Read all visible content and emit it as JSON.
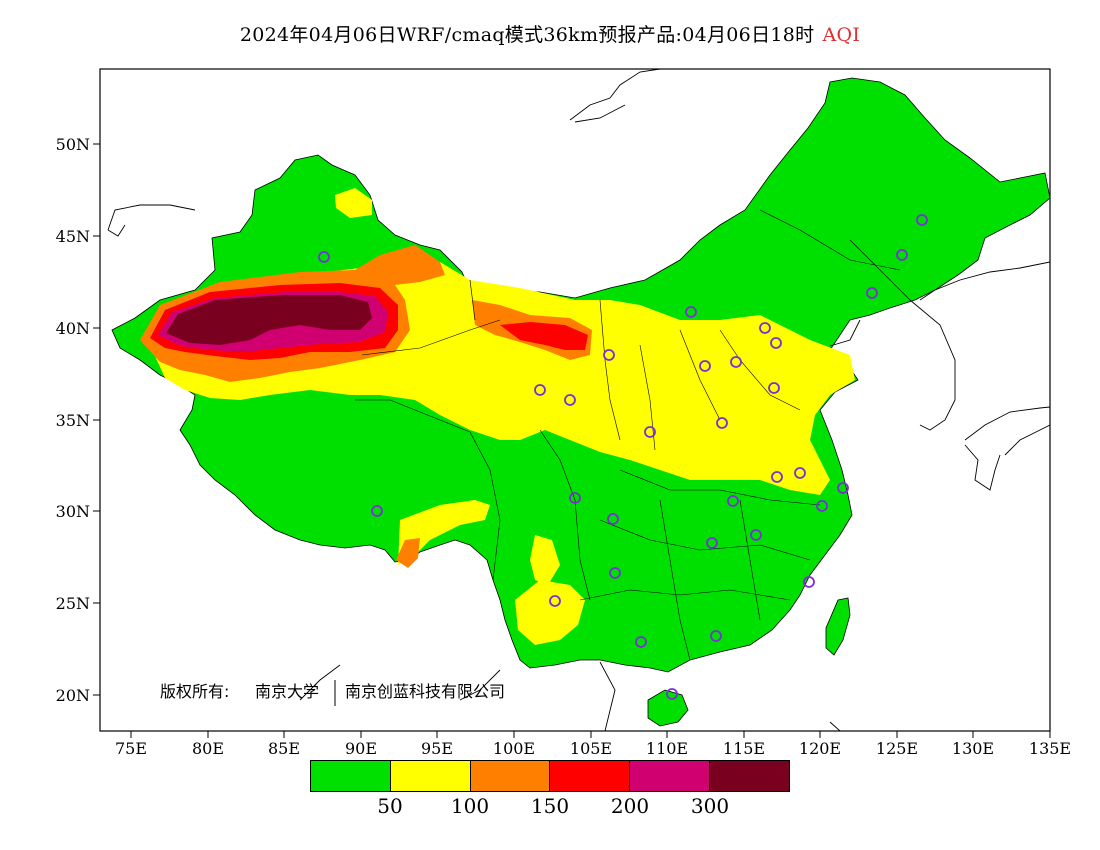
{
  "title": {
    "main": "2024年04月06日WRF/cmaq模式36km预报产品:04月06日18时",
    "variable": "AQI"
  },
  "axes": {
    "lat_labels": [
      "50N",
      "45N",
      "40N",
      "35N",
      "30N",
      "25N",
      "20N"
    ],
    "lon_labels": [
      "75E",
      "80E",
      "85E",
      "90E",
      "95E",
      "100E",
      "105E",
      "110E",
      "115E",
      "120E",
      "125E",
      "130E",
      "135E"
    ]
  },
  "copyright": {
    "label": "版权所有:",
    "org1": "南京大学",
    "org2": "南京创蓝科技有限公司"
  },
  "legend": {
    "colors": [
      "#00e000",
      "#ffff00",
      "#ff8000",
      "#ff0000",
      "#d00070",
      "#7a0020"
    ],
    "ticks": [
      "50",
      "100",
      "150",
      "200",
      "300"
    ]
  },
  "colors": {
    "ocean": "#ffffff",
    "station_marker": "#7b2fd8"
  }
}
